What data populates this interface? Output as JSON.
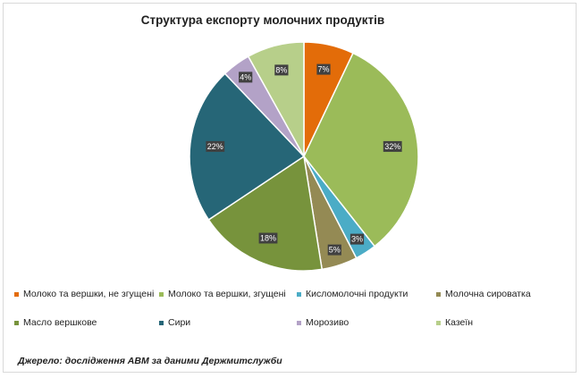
{
  "chart_data": {
    "type": "pie",
    "title": "Структура експорту молочних продуктів",
    "slices": [
      {
        "label": "Молоко та вершки, не згущені",
        "value": 7,
        "display": "7%",
        "color": "#e36c09"
      },
      {
        "label": "Молоко та вершки, згущені",
        "value": 32,
        "display": "32%",
        "color": "#9bbb59"
      },
      {
        "label": "Кисломолочні  продукти",
        "value": 3,
        "display": "3%",
        "color": "#4bacc6"
      },
      {
        "label": "Молочна сироватка",
        "value": 5,
        "display": "5%",
        "color": "#948a54"
      },
      {
        "label": "Масло вершкове",
        "value": 18,
        "display": "18%",
        "color": "#77933c"
      },
      {
        "label": "Сири",
        "value": 22,
        "display": "22%",
        "color": "#266677"
      },
      {
        "label": "Морозиво",
        "value": 4,
        "display": "4%",
        "color": "#b3a2c7"
      },
      {
        "label": "Казеїн",
        "value": 8,
        "display": "8%",
        "color": "#b7cf8a"
      }
    ],
    "legend_position": "bottom",
    "source": "Джерело: дослідження АВМ за даними Держмитслужби"
  }
}
